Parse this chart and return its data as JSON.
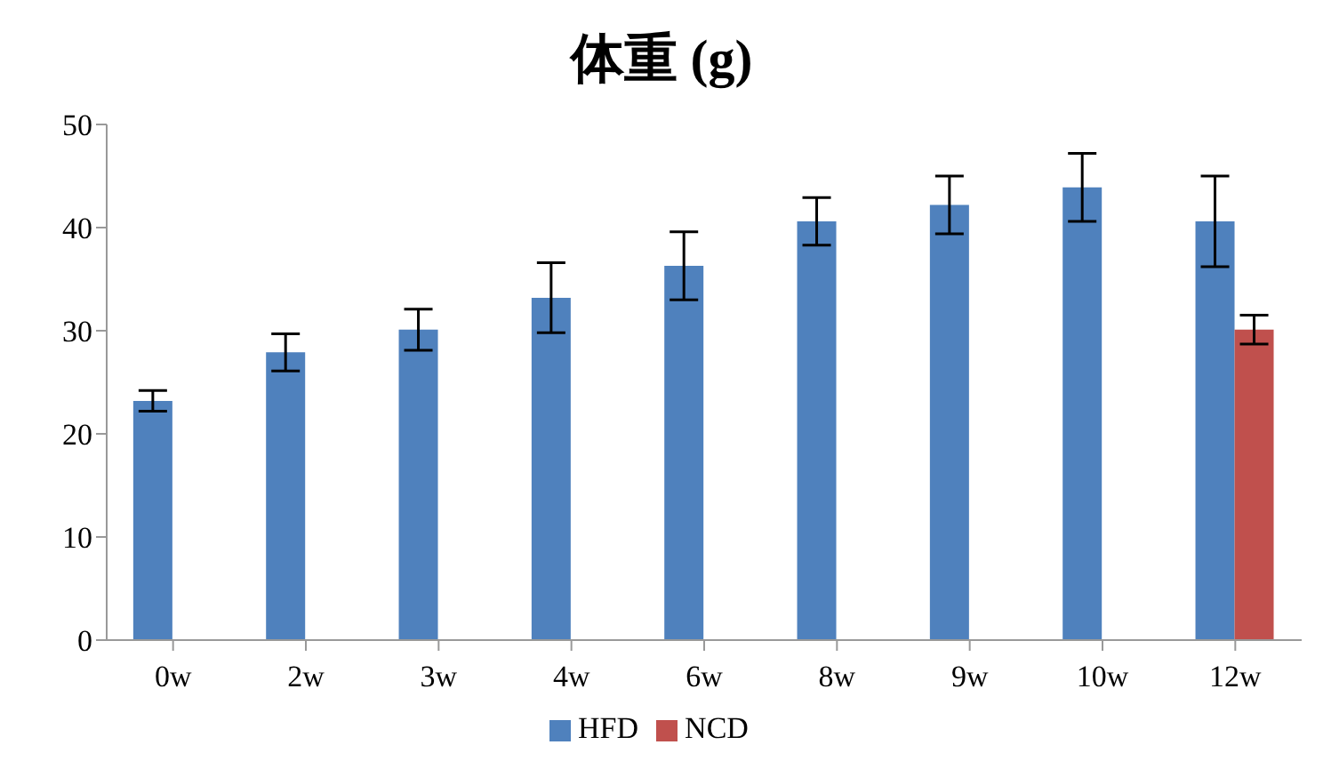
{
  "chart_data": {
    "type": "bar",
    "title": "体重 (g)",
    "categories": [
      "0w",
      "2w",
      "3w",
      "4w",
      "6w",
      "8w",
      "9w",
      "10w",
      "12w"
    ],
    "series": [
      {
        "name": "HFD",
        "color": "#4f81bd",
        "values": [
          23.2,
          27.9,
          30.1,
          33.2,
          36.3,
          40.6,
          42.2,
          43.9,
          40.6
        ],
        "errors": [
          1.0,
          1.8,
          2.0,
          3.4,
          3.3,
          2.3,
          2.8,
          3.3,
          4.4
        ]
      },
      {
        "name": "NCD",
        "color": "#c0504d",
        "values": [
          null,
          null,
          null,
          null,
          null,
          null,
          null,
          null,
          30.1
        ],
        "errors": [
          null,
          null,
          null,
          null,
          null,
          null,
          null,
          null,
          1.4
        ]
      }
    ],
    "ylim": [
      0,
      50
    ],
    "yticks": [
      0,
      10,
      20,
      30,
      40,
      50
    ],
    "grid": false,
    "legend": "bottom"
  }
}
